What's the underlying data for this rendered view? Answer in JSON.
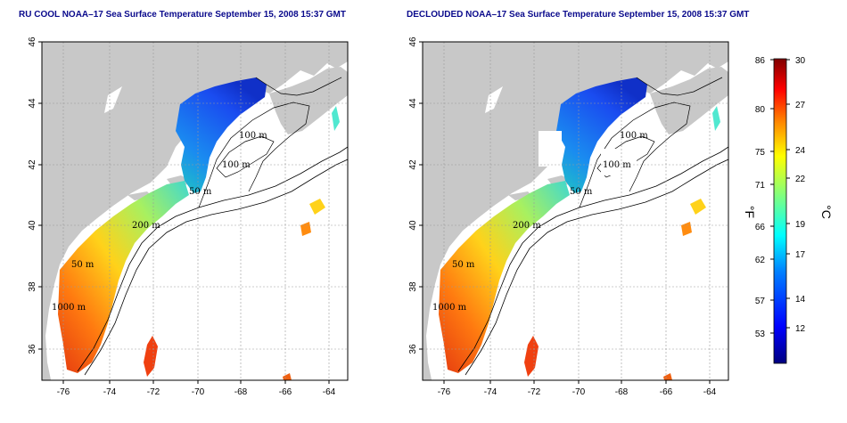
{
  "maps": [
    {
      "title": "RU COOL NOAA–17 Sea Surface Temperature September 15, 2008 15:37 GMT",
      "lat_ticks": [
        "36",
        "38",
        "40",
        "42",
        "44",
        "46"
      ],
      "lon_ticks": [
        "-76",
        "-74",
        "-72",
        "-70",
        "-68",
        "-66",
        "-64"
      ],
      "contour_labels": [
        "100 m",
        "100 m",
        "50 m",
        "200 m",
        "50 m",
        "1000 m"
      ]
    },
    {
      "title": "DECLOUDED NOAA–17 Sea Surface Temperature September 15, 2008 15:37 GMT",
      "lat_ticks": [
        "36",
        "38",
        "40",
        "42",
        "44",
        "46"
      ],
      "lon_ticks": [
        "-76",
        "-74",
        "-72",
        "-70",
        "-68",
        "-66",
        "-64"
      ],
      "contour_labels": [
        "100 m",
        "100 m",
        "50 m",
        "200 m",
        "50 m",
        "1000 m"
      ]
    }
  ],
  "colorbar": {
    "fahrenheit_ticks": [
      "86",
      "80",
      "75",
      "71",
      "66",
      "62",
      "57",
      "53"
    ],
    "celsius_ticks": [
      "30",
      "27",
      "24",
      "22",
      "19",
      "17",
      "14",
      "12"
    ],
    "fahrenheit_unit": "°F",
    "celsius_unit": "°C",
    "colors": [
      "#00007f",
      "#0000ff",
      "#007fff",
      "#00ffff",
      "#7fff7f",
      "#ffff00",
      "#ff7f00",
      "#ff0000",
      "#7f0000"
    ]
  },
  "colors": {
    "land": "#c8c8c8",
    "ocean": "#ffffff",
    "title": "#0a0a8c"
  }
}
